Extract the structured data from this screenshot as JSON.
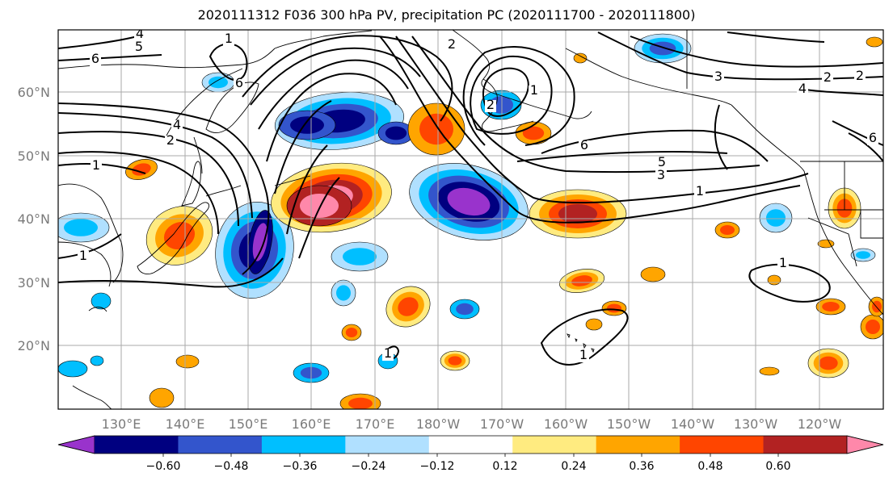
{
  "title": "2020111312 F036 300 hPa PV, precipitation PC (2020111700 - 2020111800)",
  "longitude_labels": [
    "130°E",
    "140°E",
    "150°E",
    "160°E",
    "170°E",
    "180°W",
    "170°W",
    "160°W",
    "150°W",
    "140°W",
    "130°W",
    "120°W"
  ],
  "latitude_labels": [
    "60°N",
    "50°N",
    "40°N",
    "30°N",
    "20°N"
  ],
  "colorbar": {
    "tick_labels": [
      "−0.60",
      "−0.48",
      "−0.36",
      "−0.24",
      "−0.12",
      "0.12",
      "0.24",
      "0.36",
      "0.48",
      "0.60"
    ],
    "colors": [
      "#9933cc",
      "#000080",
      "#3355cc",
      "#00bfff",
      "#b0e0ff",
      "#ffffff",
      "#ffeb80",
      "#ffa500",
      "#ff4500",
      "#b22222",
      "#ff88aa"
    ]
  },
  "pv_contour_labels": [
    "4",
    "5",
    "6",
    "1",
    "6",
    "4",
    "2",
    "1",
    "1",
    "2",
    "2",
    "1",
    "3",
    "4",
    "5",
    "6",
    "1",
    "3",
    "2",
    "2",
    "6",
    "1",
    "1",
    "1"
  ],
  "colors": {
    "pv_contour": "#000000",
    "grid": "#aaaaaa",
    "coast": "#000000"
  }
}
